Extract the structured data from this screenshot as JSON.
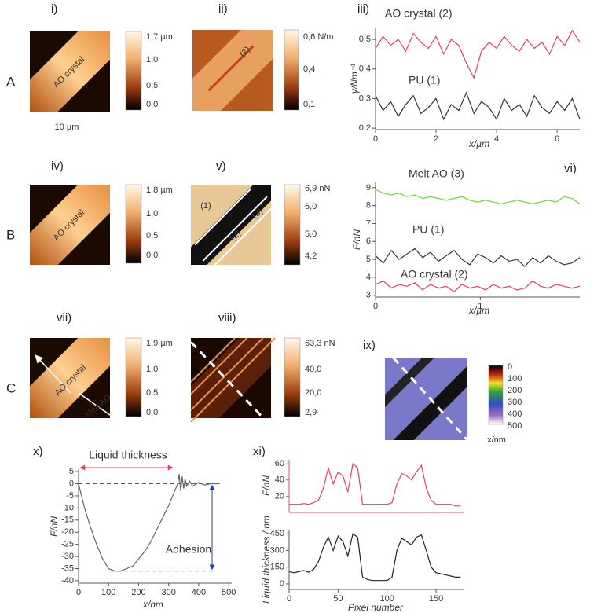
{
  "rows": [
    "A",
    "B",
    "C"
  ],
  "scale": "10 µm",
  "panels": [
    {
      "label": "i)",
      "texts": [
        "AO crystal"
      ],
      "colorbar": [
        "1,7 µm",
        "1,0",
        "0,5",
        "0,0"
      ]
    },
    {
      "label": "ii)",
      "texts": [
        "(2)"
      ],
      "colorbar": [
        "0,6 N/m",
        "0,4",
        "0,1"
      ]
    },
    {
      "label": "iv)",
      "texts": [
        "AO crystal"
      ],
      "colorbar": [
        "1,8 µm",
        "1,0",
        "0,5",
        "0,0"
      ]
    },
    {
      "label": "v)",
      "texts": [
        "(1)",
        "(2)",
        "(3)"
      ],
      "colorbar": [
        "6,9 nN",
        "6,0",
        "5,0",
        "4,2"
      ]
    },
    {
      "label": "vii)",
      "texts": [
        "AO crystal",
        "Melt AO"
      ],
      "colorbar": [
        "1,9 µm",
        "1,0",
        "0,5",
        "0,0"
      ]
    },
    {
      "label": "viii)",
      "texts": [],
      "colorbar": [
        "63,3 nN",
        "40,0",
        "20,0",
        "2,9"
      ]
    },
    {
      "label": "ix)",
      "texts": [
        "x/nm"
      ],
      "colorbar": [
        "0",
        "100",
        "200",
        "300",
        "400",
        "500"
      ]
    }
  ],
  "chart_data": [
    {
      "type": "line",
      "label": "iii)",
      "xlabel": "x/µm",
      "ylabel": "γ/Nm⁻¹",
      "x": [
        0,
        0.25,
        0.5,
        0.75,
        1,
        1.25,
        1.5,
        1.75,
        2,
        2.25,
        2.5,
        2.75,
        3,
        3.25,
        3.5,
        3.75,
        4,
        4.25,
        4.5,
        4.75,
        5,
        5.25,
        5.5,
        5.75,
        6,
        6.25,
        6.5,
        6.75
      ],
      "series": [
        {
          "name": "AO crystal (2)",
          "color": "#e8405a",
          "values": [
            0.47,
            0.51,
            0.48,
            0.5,
            0.46,
            0.52,
            0.49,
            0.47,
            0.51,
            0.45,
            0.5,
            0.48,
            0.42,
            0.37,
            0.46,
            0.49,
            0.47,
            0.51,
            0.48,
            0.46,
            0.5,
            0.47,
            0.49,
            0.45,
            0.51,
            0.48,
            0.53,
            0.49
          ]
        },
        {
          "name": "PU (1)",
          "color": "#333333",
          "values": [
            0.31,
            0.26,
            0.29,
            0.24,
            0.28,
            0.31,
            0.25,
            0.27,
            0.3,
            0.23,
            0.28,
            0.26,
            0.32,
            0.25,
            0.29,
            0.27,
            0.23,
            0.3,
            0.26,
            0.28,
            0.24,
            0.31,
            0.27,
            0.25,
            0.29,
            0.26,
            0.3,
            0.23
          ]
        }
      ],
      "xlim": [
        0,
        6.75
      ],
      "xticks": [
        0,
        2,
        4,
        6
      ],
      "ylim": [
        0.195,
        0.54
      ],
      "yticks": [
        {
          "value": 0.2,
          "label": "0,2"
        },
        {
          "value": 0.3,
          "label": "0,3"
        },
        {
          "value": 0.4,
          "label": "0,4"
        },
        {
          "value": 0.5,
          "label": "0,5"
        }
      ]
    },
    {
      "type": "line",
      "label": "vi)",
      "xlabel": "x/µm",
      "ylabel": "F/nN",
      "x": [
        0,
        0.075,
        0.15,
        0.225,
        0.3,
        0.375,
        0.45,
        0.525,
        0.6,
        0.675,
        0.75,
        0.825,
        0.9,
        0.975,
        1.05,
        1.125,
        1.2,
        1.275,
        1.35,
        1.425,
        1.5,
        1.575,
        1.65,
        1.725,
        1.8,
        1.875,
        1.95
      ],
      "series": [
        {
          "name": "Melt AO (3)",
          "color": "#66dd33",
          "values": [
            8.9,
            8.7,
            8.6,
            8.7,
            8.5,
            8.6,
            8.4,
            8.5,
            8.4,
            8.3,
            8.4,
            8.5,
            8.3,
            8.2,
            8.3,
            8.2,
            8.1,
            8.2,
            8.3,
            8.2,
            8.1,
            8.2,
            8.3,
            8.2,
            8.5,
            8.4,
            8.1
          ]
        },
        {
          "name": "PU (1)",
          "color": "#333333",
          "values": [
            5.2,
            4.8,
            5.5,
            5.0,
            5.3,
            5.6,
            5.1,
            5.4,
            4.9,
            5.2,
            5.5,
            5.0,
            4.7,
            5.3,
            5.1,
            4.8,
            5.2,
            4.9,
            5.0,
            4.6,
            5.1,
            4.8,
            5.2,
            4.9,
            4.7,
            4.8,
            5.1
          ]
        },
        {
          "name": "AO crystal (2)",
          "color": "#e8405a",
          "values": [
            3.6,
            3.8,
            3.4,
            3.6,
            3.5,
            3.7,
            3.3,
            3.6,
            3.4,
            3.5,
            3.2,
            3.6,
            3.4,
            3.5,
            3.3,
            3.6,
            3.4,
            3.5,
            3.3,
            3.4,
            3.8,
            3.5,
            3.4,
            3.6,
            3.5,
            3.4,
            3.5
          ]
        }
      ],
      "xlim": [
        0,
        1.95
      ],
      "xticks": [
        0,
        1
      ],
      "ylim": [
        2.9,
        9.3
      ],
      "yticks": [
        3,
        4,
        5,
        6,
        7,
        8,
        9
      ]
    },
    {
      "type": "line",
      "label": "x)",
      "xlabel": "x/nm",
      "ylabel": "F/nN",
      "annotations": [
        {
          "text": "Liquid thickness",
          "color": "#e8405a"
        },
        {
          "text": "Adhesion",
          "color": "#3a9aa8"
        }
      ],
      "x": [
        0,
        10,
        20,
        40,
        60,
        80,
        100,
        120,
        140,
        160,
        180,
        200,
        220,
        240,
        260,
        280,
        300,
        320,
        330,
        335,
        340,
        345,
        350,
        355,
        360,
        370,
        380,
        400,
        420,
        440,
        470
      ],
      "series": [
        {
          "name": "curve",
          "color": "#666666",
          "values": [
            0,
            -5,
            -10,
            -18,
            -25,
            -31,
            -35,
            -36,
            -36,
            -35,
            -34,
            -31,
            -28,
            -24,
            -19,
            -14,
            -9,
            -3,
            0,
            4,
            -3,
            3,
            -2,
            2,
            -1,
            1,
            -1,
            0.5,
            -0.5,
            0,
            0
          ]
        }
      ],
      "xlim": [
        0,
        510
      ],
      "xticks": [
        0,
        100,
        200,
        300,
        400,
        500
      ],
      "ylim": [
        -41,
        6
      ],
      "yticks": [
        -40,
        -35,
        -30,
        -25,
        -20,
        -15,
        -10,
        -5,
        0,
        5
      ]
    },
    {
      "type": "line",
      "label": "xi)",
      "ylabel": "F/nN",
      "x": [
        0,
        5,
        10,
        15,
        20,
        25,
        30,
        35,
        40,
        45,
        50,
        55,
        60,
        65,
        70,
        75,
        80,
        85,
        90,
        95,
        100,
        105,
        110,
        115,
        120,
        125,
        130,
        135,
        140,
        145,
        150,
        155,
        160,
        165,
        170,
        175
      ],
      "series": [
        {
          "name": "F",
          "color": "#e8405a",
          "values": [
            10,
            10,
            10,
            11,
            10,
            12,
            15,
            30,
            55,
            35,
            50,
            45,
            25,
            60,
            55,
            10,
            10,
            10,
            10,
            10,
            10,
            12,
            35,
            48,
            45,
            40,
            50,
            58,
            30,
            15,
            10,
            10,
            10,
            10,
            8,
            8
          ]
        }
      ],
      "xlim": [
        0,
        178
      ],
      "ylim": [
        0,
        65
      ],
      "yticks": [
        20,
        40,
        60
      ]
    },
    {
      "type": "line",
      "xlabel": "Pixel number",
      "ylabel": "Liquid thickness / nm",
      "x": [
        0,
        5,
        10,
        15,
        20,
        25,
        30,
        35,
        40,
        45,
        50,
        55,
        60,
        65,
        70,
        75,
        80,
        85,
        90,
        95,
        100,
        105,
        110,
        115,
        120,
        125,
        130,
        135,
        140,
        145,
        150,
        155,
        160,
        165,
        170,
        175
      ],
      "series": [
        {
          "name": "thickness",
          "color": "#222222",
          "values": [
            110,
            100,
            110,
            120,
            105,
            130,
            200,
            330,
            420,
            300,
            430,
            380,
            250,
            450,
            420,
            60,
            40,
            30,
            30,
            30,
            30,
            60,
            300,
            410,
            380,
            350,
            420,
            440,
            300,
            150,
            100,
            90,
            80,
            70,
            60,
            60
          ]
        }
      ],
      "xlim": [
        0,
        178
      ],
      "xticks": [
        0,
        50,
        100,
        150
      ],
      "ylim": [
        -50,
        480
      ],
      "yticks": [
        0,
        150,
        300,
        450
      ]
    }
  ]
}
